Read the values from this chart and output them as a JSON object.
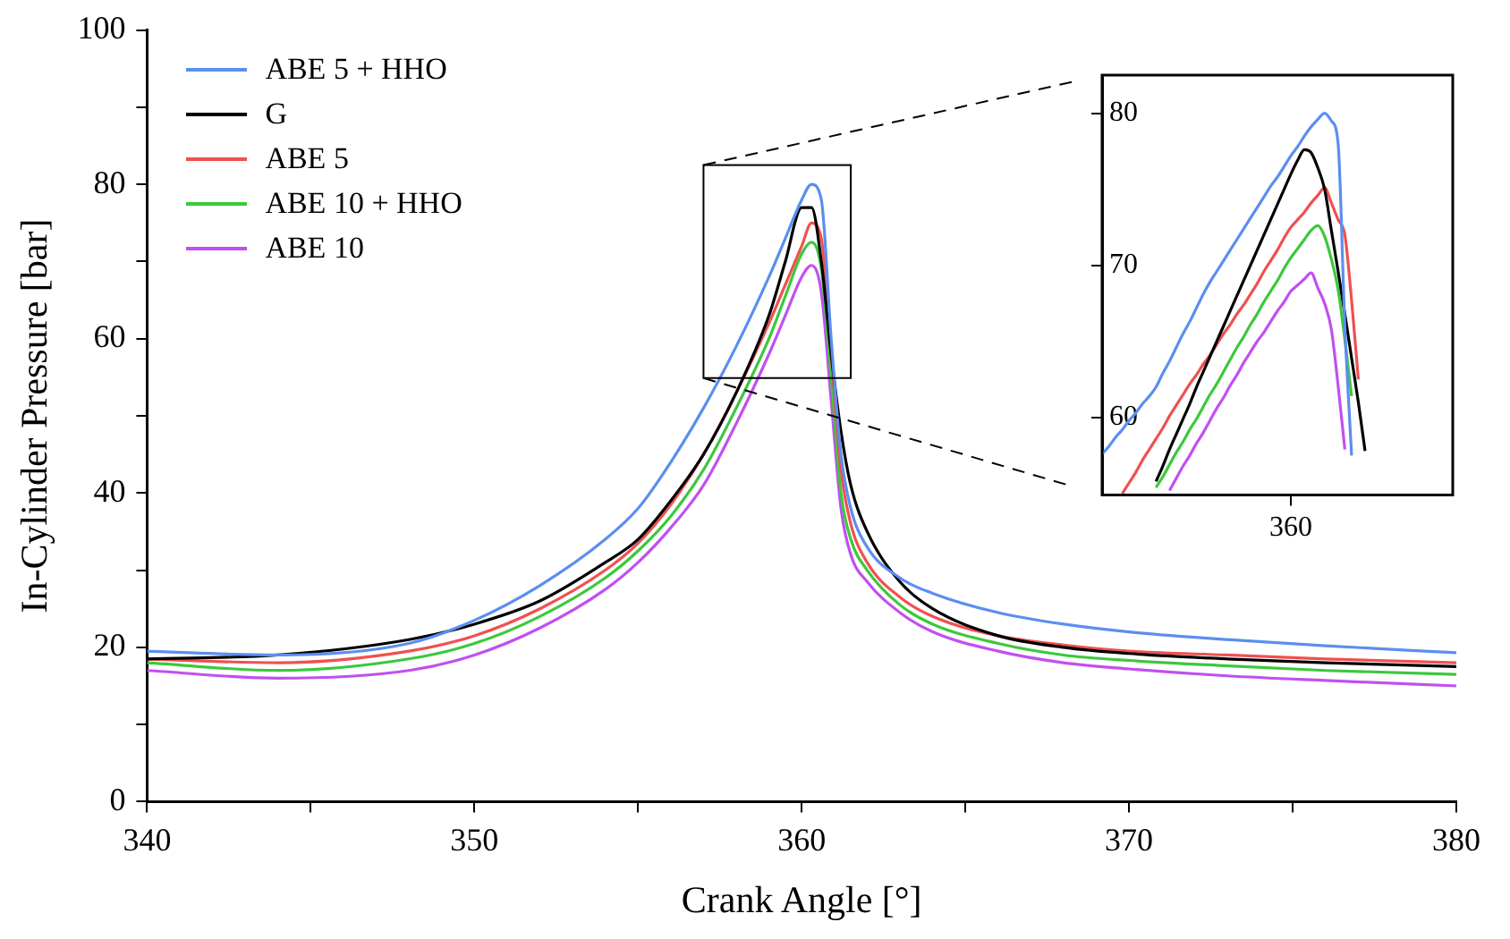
{
  "chart_data": [
    {
      "type": "line",
      "xlabel": "Crank Angle [°]",
      "ylabel": "In-Cylinder Pressure [bar]",
      "legend": "top left",
      "grid": false,
      "marker": "none",
      "x": [
        340,
        344,
        348,
        350,
        352,
        354,
        355,
        356,
        357,
        358,
        359,
        359.5,
        360,
        360.3,
        360.6,
        360.9,
        361.2,
        361.5,
        362,
        363,
        364,
        366,
        368,
        370,
        373,
        376,
        380
      ],
      "xlim": [
        340,
        380
      ],
      "xticks": [
        340,
        {
          "value": 345,
          "label": null
        },
        350,
        {
          "value": 355,
          "label": null
        },
        360,
        {
          "value": 365,
          "label": null
        },
        370,
        {
          "value": 375,
          "label": null
        },
        380
      ],
      "ylim": [
        0,
        100
      ],
      "yticks": [
        0,
        {
          "value": 10,
          "label": null
        },
        20,
        {
          "value": 30,
          "label": null
        },
        40,
        {
          "value": 50,
          "label": null
        },
        60,
        {
          "value": 70,
          "label": null
        },
        80,
        {
          "value": 90,
          "label": null
        },
        100
      ],
      "series": [
        {
          "name": "ABE 5 + HHO",
          "color": "#5b8ef0",
          "values": [
            19.5,
            19,
            20.5,
            23.5,
            28,
            34,
            38,
            44,
            51,
            59,
            68,
            73,
            78,
            80,
            78,
            60,
            45,
            38,
            33,
            29,
            27,
            24.5,
            23,
            22,
            21,
            20.2,
            19.3
          ]
        },
        {
          "name": "G",
          "color": "#000000",
          "values": [
            18.5,
            19,
            21,
            23,
            26,
            31,
            34,
            39,
            45,
            53,
            63,
            70,
            77,
            77,
            70,
            58,
            48,
            41,
            35,
            28.5,
            25,
            21.5,
            20,
            19.2,
            18.5,
            18,
            17.5
          ]
        },
        {
          "name": "ABE 5",
          "color": "#f05050",
          "values": [
            18.5,
            18,
            19.5,
            21.5,
            25,
            30,
            33.5,
            38.5,
            45,
            53,
            62,
            67,
            72,
            75,
            73,
            58,
            43,
            36,
            31,
            26.5,
            24,
            21.5,
            20.3,
            19.5,
            19,
            18.5,
            18
          ]
        },
        {
          "name": "ABE 10 + HHO",
          "color": "#3cc83c",
          "values": [
            18,
            17,
            18.5,
            20.5,
            24,
            29,
            32.5,
            37,
            43,
            51,
            60,
            65.5,
            71,
            72.5,
            69,
            55,
            40,
            34,
            30,
            25.5,
            23,
            20.5,
            19,
            18.3,
            17.6,
            17,
            16.5
          ]
        },
        {
          "name": "ABE 10",
          "color": "#c050f0",
          "values": [
            17,
            16,
            17,
            19,
            22.5,
            27.5,
            31,
            35.5,
            41,
            49,
            58,
            63,
            68,
            69.5,
            66,
            52,
            38,
            32,
            28.5,
            24.5,
            22,
            19.5,
            18,
            17.2,
            16.3,
            15.7,
            15
          ]
        }
      ]
    },
    {
      "type": "line",
      "grid": false,
      "marker": "none",
      "categories": [
        null,
        null,
        null,
        null,
        null,
        null,
        null,
        null,
        null,
        null,
        null,
        null,
        null,
        null,
        null,
        null,
        null,
        null,
        null,
        null,
        null,
        null,
        null,
        null,
        null,
        null,
        null,
        null,
        "360",
        null,
        null,
        null,
        null,
        null,
        null,
        null,
        null,
        null,
        null,
        null,
        null,
        null,
        null,
        null,
        null,
        null,
        null,
        null,
        null,
        null,
        null,
        null,
        null
      ],
      "ylim": [
        54.9,
        82.5
      ],
      "yticks": [
        60,
        70,
        80
      ],
      "series": [
        {
          "color": "#5b8ef0",
          "values": [
            57.6,
            58.1,
            58.7,
            59.2,
            59.8,
            60.3,
            60.9,
            61.4,
            62,
            62.9,
            63.7,
            64.6,
            65.5,
            66.3,
            67.2,
            68.1,
            68.9,
            69.6,
            70.3,
            71,
            71.7,
            72.4,
            73.1,
            73.8,
            74.5,
            75.2,
            75.8,
            76.5,
            77.2,
            77.8,
            78.5,
            79.1,
            79.6,
            80,
            79.5,
            78,
            66,
            57.5,
            null,
            null,
            null,
            null,
            null,
            null,
            null,
            null,
            null,
            null,
            null,
            null,
            null,
            null,
            null
          ]
        },
        {
          "color": "#000000",
          "values": [
            null,
            null,
            null,
            null,
            null,
            null,
            null,
            null,
            55.8,
            56.8,
            57.9,
            58.9,
            59.9,
            60.9,
            62,
            63,
            64,
            65,
            66,
            67,
            68,
            69,
            70,
            71,
            72,
            73,
            74,
            75,
            76,
            76.9,
            77.6,
            77.4,
            76.4,
            75,
            72.3,
            69.6,
            66.8,
            63.9,
            61,
            57.8,
            null,
            null,
            null,
            null,
            null,
            null,
            null,
            null,
            null,
            null,
            null,
            null,
            null
          ]
        },
        {
          "color": "#f05050",
          "values": [
            null,
            null,
            null,
            55,
            55.7,
            56.4,
            57.2,
            57.9,
            58.6,
            59.3,
            60.1,
            60.8,
            61.5,
            62.2,
            62.8,
            63.5,
            64.1,
            64.8,
            65.5,
            66.1,
            66.8,
            67.4,
            68.1,
            68.8,
            69.6,
            70.3,
            71,
            71.8,
            72.5,
            73,
            73.5,
            74.1,
            74.6,
            75.1,
            74.1,
            73,
            72,
            67.7,
            62.5,
            null,
            null,
            null,
            null,
            null,
            null,
            null,
            null,
            null,
            null,
            null,
            null,
            null,
            null
          ]
        },
        {
          "color": "#3cc83c",
          "values": [
            null,
            null,
            null,
            null,
            null,
            null,
            null,
            null,
            55.4,
            56.1,
            56.9,
            57.7,
            58.4,
            59.2,
            59.9,
            60.7,
            61.5,
            62.2,
            63,
            63.8,
            64.6,
            65.3,
            66.1,
            66.8,
            67.6,
            68.3,
            69,
            69.8,
            70.5,
            71.1,
            71.7,
            72.3,
            72.6,
            71.9,
            70.4,
            68.4,
            65.1,
            61.4,
            null,
            null,
            null,
            null,
            null,
            null,
            null,
            null,
            null,
            null,
            null,
            null,
            null,
            null,
            null
          ]
        },
        {
          "color": "#c050f0",
          "values": [
            null,
            null,
            null,
            null,
            null,
            null,
            null,
            null,
            null,
            null,
            55.2,
            56,
            56.8,
            57.5,
            58.3,
            59,
            59.8,
            60.6,
            61.3,
            62.1,
            62.8,
            63.6,
            64.3,
            65,
            65.6,
            66.3,
            67,
            67.6,
            68.3,
            68.7,
            69.1,
            69.5,
            68.5,
            67.5,
            65.8,
            62.1,
            57.9,
            null,
            null,
            null,
            null,
            null,
            null,
            null,
            null,
            null,
            null,
            null,
            null,
            null,
            null,
            null,
            null
          ]
        }
      ]
    }
  ]
}
